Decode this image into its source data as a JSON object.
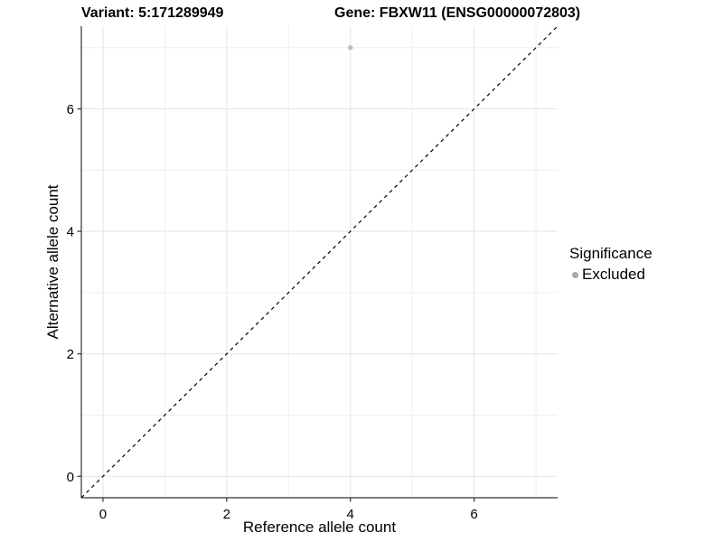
{
  "chart_data": {
    "type": "scatter",
    "titles": {
      "variant": "Variant: 5:171289949",
      "gene": "Gene: FBXW11 (ENSG00000072803)"
    },
    "xlabel": "Reference allele count",
    "ylabel": "Alternative allele count",
    "xlim": [
      -0.35,
      7.35
    ],
    "ylim": [
      -0.35,
      7.35
    ],
    "x_major_ticks": [
      0,
      2,
      4,
      6
    ],
    "x_minor_ticks": [
      1,
      3,
      5,
      7
    ],
    "y_major_ticks": [
      0,
      2,
      4,
      6
    ],
    "y_minor_ticks": [
      1,
      3,
      5,
      7
    ],
    "grid": true,
    "points": [
      {
        "x": 4,
        "y": 7,
        "series": "Excluded"
      }
    ],
    "reference_line": {
      "type": "identity",
      "equation": "y = x",
      "style": "dashed"
    },
    "legend": {
      "title": "Significance",
      "position": "right",
      "items": [
        {
          "label": "Excluded",
          "color": "#a9a9a9"
        }
      ]
    }
  },
  "colors": {
    "background": "#ffffff",
    "grid_major": "#e4e4e4",
    "grid_minor": "#efefef",
    "axis_line": "#333333",
    "tick_mark": "#333333",
    "tick_label": "#000000",
    "reference_line": "#000000",
    "point": "#bdbdbd",
    "legend_key": "#a9a9a9"
  }
}
